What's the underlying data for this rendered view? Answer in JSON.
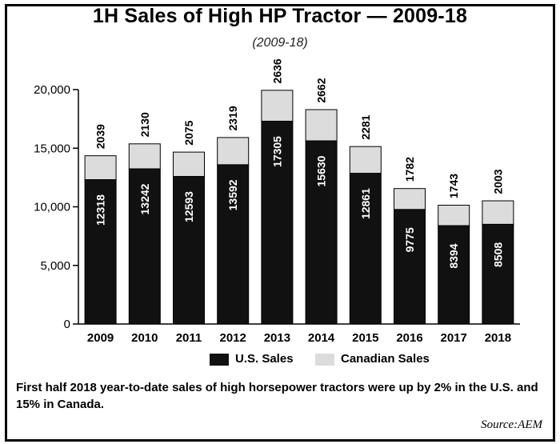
{
  "header": {
    "title": "1H Sales of High HP Tractor — 2009-18",
    "subtitle": "(2009-18)"
  },
  "chart_data": {
    "type": "bar",
    "stacked": true,
    "categories": [
      "2009",
      "2010",
      "2011",
      "2012",
      "2013",
      "2014",
      "2015",
      "2016",
      "2017",
      "2018"
    ],
    "series": [
      {
        "name": "U.S. Sales",
        "color": "#111111",
        "values": [
          12318,
          13242,
          12593,
          13592,
          17305,
          15630,
          12861,
          9775,
          8394,
          8508
        ]
      },
      {
        "name": "Canadian Sales",
        "color": "#dcdcdc",
        "values": [
          2039,
          2130,
          2075,
          2319,
          2636,
          2662,
          2281,
          1782,
          1743,
          2003
        ]
      }
    ],
    "ylim": [
      0,
      20000
    ],
    "yticks": [
      0,
      5000,
      10000,
      15000,
      20000
    ],
    "ytick_labels": [
      "0",
      "5,000",
      "10,000",
      "15,000",
      "20,000"
    ],
    "grid": false,
    "legend_position": "bottom"
  },
  "legend": {
    "us_label": "U.S. Sales",
    "canada_label": "Canadian Sales"
  },
  "footer": {
    "note": "First half 2018 year-to-date sales of high horsepower tractors were up by 2% in the U.S. and 15% in Canada.",
    "source": "Source:AEM"
  }
}
